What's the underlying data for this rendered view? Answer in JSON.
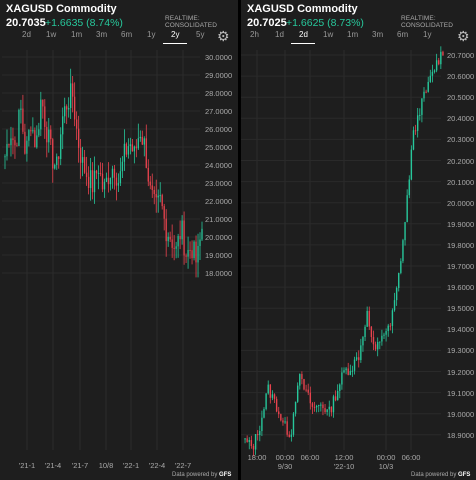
{
  "left": {
    "title": "XAGUSD Commodity",
    "price": "20.7035",
    "change": "+1.6635 (8.74%)",
    "realtime": "REALTIME: CONSOLIDATED",
    "tabs": [
      "2d",
      "1w",
      "1m",
      "3m",
      "6m",
      "1y",
      "2y",
      "5y"
    ],
    "active_tab": "2y",
    "y_labels": [
      "30.0000",
      "29.0000",
      "28.0000",
      "27.0000",
      "26.0000",
      "25.0000",
      "24.0000",
      "23.0000",
      "22.0000",
      "21.0000",
      "20.0000",
      "19.0000",
      "18.0000"
    ],
    "x_labels": [
      "'21-1",
      "'21-4",
      "'21-7",
      "10/8",
      "'22-1",
      "'22-4",
      "'22-7"
    ],
    "footer": "Data powered by",
    "footer_brand": "GFS"
  },
  "right": {
    "title": "XAGUSD Commodity",
    "price": "20.7025",
    "change": "+1.6625 (8.73%)",
    "realtime": "REALTIME: CONSOLIDATED",
    "tabs": [
      "2h",
      "1d",
      "2d",
      "1w",
      "1m",
      "3m",
      "6m",
      "1y"
    ],
    "active_tab": "2d",
    "y_labels": [
      "20.7000",
      "20.6000",
      "20.5000",
      "20.4000",
      "20.3000",
      "20.2000",
      "20.1000",
      "20.0000",
      "19.9000",
      "19.8000",
      "19.7000",
      "19.6000",
      "19.5000",
      "19.4000",
      "19.3000",
      "19.2000",
      "19.1000",
      "19.0000",
      "18.9000"
    ],
    "x_labels": [
      [
        "18:00",
        ""
      ],
      [
        "00:00",
        "9/30"
      ],
      [
        "06:00",
        ""
      ],
      [
        "12:00",
        "'22-10"
      ],
      [
        "00:00",
        "10/3"
      ],
      [
        "06:00",
        ""
      ]
    ],
    "footer": "Data powered by",
    "footer_brand": "GFS"
  },
  "colors": {
    "up": "#27c79b",
    "down": "#e8434e",
    "bg": "#1e1e1e"
  },
  "icons": {
    "settings": "gear-icon"
  }
}
